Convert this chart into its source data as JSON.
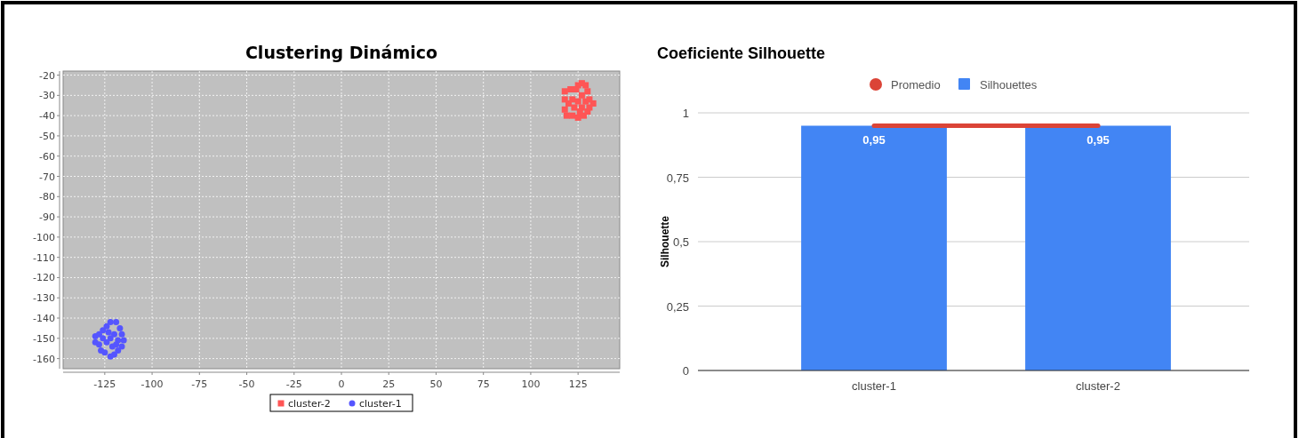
{
  "chart_data": [
    {
      "type": "scatter",
      "title": "Clustering Dinámico",
      "xlim": [
        -147,
        147
      ],
      "xticks": [
        -125,
        -100,
        -75,
        -50,
        -25,
        0,
        25,
        50,
        75,
        100,
        125
      ],
      "ylim": [
        -165,
        -18
      ],
      "yticks": [
        -20,
        -30,
        -40,
        -50,
        -60,
        -70,
        -80,
        -90,
        -100,
        -110,
        -120,
        -130,
        -140,
        -150,
        -160
      ],
      "grid": true,
      "legend": "bottom",
      "series": [
        {
          "name": "cluster-2",
          "color": "#ff5555",
          "marker": "square",
          "x": [
            118,
            118,
            118,
            119,
            122,
            125,
            128,
            130,
            131,
            133,
            131,
            130,
            129,
            127,
            125,
            124,
            121,
            122,
            125,
            127,
            123,
            127,
            120,
            126,
            129
          ],
          "values": [
            -28,
            -32,
            -37,
            -40,
            -40,
            -41,
            -40,
            -38,
            -36,
            -34,
            -32,
            -28,
            -25,
            -24,
            -25,
            -27,
            -27,
            -32,
            -33,
            -30,
            -36,
            -36,
            -34,
            -38,
            -33
          ]
        },
        {
          "name": "cluster-1",
          "color": "#5555ff",
          "marker": "circle",
          "x": [
            -122,
            -119,
            -117,
            -116,
            -115,
            -116,
            -118,
            -120,
            -122,
            -125,
            -127,
            -128,
            -130,
            -130,
            -128,
            -126,
            -124,
            -122,
            -120,
            -124,
            -121,
            -126,
            -118,
            -123,
            -119
          ],
          "values": [
            -142,
            -142,
            -145,
            -148,
            -151,
            -154,
            -156,
            -158,
            -159,
            -157,
            -156,
            -153,
            -152,
            -149,
            -148,
            -146,
            -144,
            -150,
            -148,
            -152,
            -154,
            -150,
            -151,
            -147,
            -153
          ]
        }
      ]
    },
    {
      "type": "bar",
      "title": "Coeficiente Silhouette",
      "ylabel": "Silhouette",
      "categories": [
        "cluster-1",
        "cluster-2"
      ],
      "ylim": [
        0,
        1
      ],
      "yticks": [
        0,
        {
          "value": 0.25,
          "label": "0,25"
        },
        {
          "value": 0.5,
          "label": "0,5"
        },
        {
          "value": 0.75,
          "label": "0,75"
        },
        1
      ],
      "grid": "y",
      "legend": "top",
      "series": [
        {
          "name": "Promedio",
          "type": "line",
          "color": "#db4437",
          "values": [
            0.95,
            0.95
          ]
        },
        {
          "name": "Silhouettes",
          "type": "bar",
          "color": "#4285f4",
          "values": [
            0.95,
            0.95
          ],
          "value_labels": [
            "0,95",
            "0,95"
          ]
        }
      ]
    }
  ]
}
